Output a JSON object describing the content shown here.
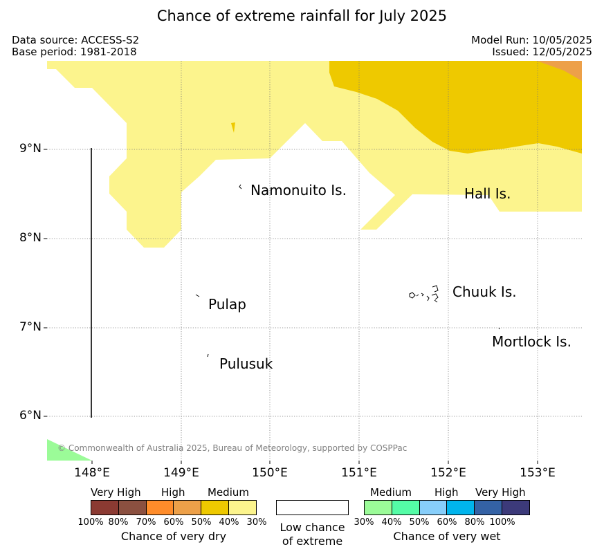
{
  "title": "Chance of extreme rainfall for July 2025",
  "meta": {
    "data_source": "Data source: ACCESS-S2",
    "base_period": "Base period: 1981-2018",
    "model_run": "Model Run: 10/05/2025",
    "issued": "Issued: 12/05/2025"
  },
  "axes": {
    "lat_labels": [
      "9°N",
      "8°N",
      "7°N",
      "6°N"
    ],
    "lon_labels": [
      "148°E",
      "149°E",
      "150°E",
      "151°E",
      "152°E",
      "153°E"
    ]
  },
  "places": {
    "namonuito": "Namonuito Is.",
    "hall": "Hall Is.",
    "pulap": "Pulap",
    "chuuk": "Chuuk Is.",
    "mortlock": "Mortlock Is.",
    "pulusuk": "Pulusuk"
  },
  "copyright": "© Commonwealth of Australia 2025, Bureau of Meteorology, supported by COSPPac",
  "legend": {
    "dry": {
      "captions": [
        "Very High",
        "High",
        "Medium"
      ],
      "colors": [
        "#8b3a32",
        "#8b5040",
        "#ff8c2a",
        "#eda049",
        "#eec900",
        "#fcf48d"
      ],
      "percents": [
        "100%",
        "80%",
        "70%",
        "60%",
        "50%",
        "40%",
        "30%"
      ],
      "title": "Chance of very dry"
    },
    "low": {
      "line1": "Low chance",
      "line2": "of extreme"
    },
    "wet": {
      "captions": [
        "Medium",
        "High",
        "Very High"
      ],
      "colors": [
        "#9bfb98",
        "#54fca6",
        "#87cefa",
        "#00b4ec",
        "#3462a5",
        "#3c3a7a"
      ],
      "percents": [
        "30%",
        "40%",
        "50%",
        "60%",
        "80%",
        "100%"
      ],
      "title": "Chance of very wet"
    }
  }
}
